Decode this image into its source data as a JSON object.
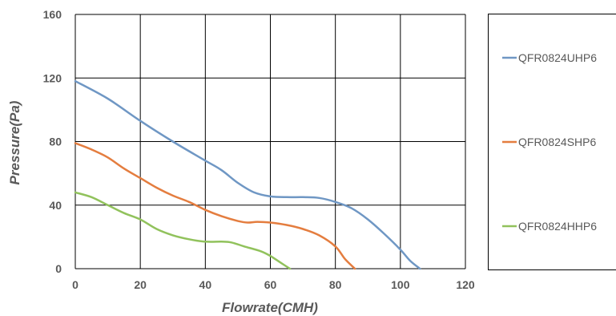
{
  "chart_data": {
    "type": "line",
    "xlabel": "Flowrate(CMH)",
    "ylabel": "Pressure(Pa)",
    "xlim": [
      0,
      120
    ],
    "ylim": [
      0,
      160
    ],
    "xticks": [
      0,
      20,
      40,
      60,
      80,
      100,
      120
    ],
    "yticks": [
      0,
      40,
      80,
      120,
      160
    ],
    "grid": true,
    "legend_position": "right",
    "series": [
      {
        "name": "QFR0824UHP6",
        "color": "#6f97c4",
        "points": [
          [
            0,
            118
          ],
          [
            10,
            107
          ],
          [
            20,
            93
          ],
          [
            30,
            80
          ],
          [
            40,
            68
          ],
          [
            45,
            62
          ],
          [
            50,
            54
          ],
          [
            55,
            48
          ],
          [
            60,
            45.5
          ],
          [
            65,
            45
          ],
          [
            70,
            45
          ],
          [
            75,
            44.5
          ],
          [
            80,
            42
          ],
          [
            85,
            38
          ],
          [
            90,
            31
          ],
          [
            95,
            22
          ],
          [
            100,
            12
          ],
          [
            103,
            5
          ],
          [
            106,
            0
          ]
        ]
      },
      {
        "name": "QFR0824SHP6",
        "color": "#e47d3f",
        "points": [
          [
            0,
            79
          ],
          [
            5,
            75
          ],
          [
            10,
            70
          ],
          [
            15,
            63
          ],
          [
            20,
            57
          ],
          [
            25,
            51
          ],
          [
            30,
            46
          ],
          [
            35,
            42
          ],
          [
            40,
            37
          ],
          [
            45,
            33
          ],
          [
            50,
            30
          ],
          [
            53,
            29
          ],
          [
            56,
            29.5
          ],
          [
            60,
            29
          ],
          [
            65,
            27.5
          ],
          [
            70,
            25
          ],
          [
            75,
            21
          ],
          [
            80,
            14
          ],
          [
            83,
            6
          ],
          [
            86,
            0
          ]
        ]
      },
      {
        "name": "QFR0824HHP6",
        "color": "#91c25c",
        "points": [
          [
            0,
            48
          ],
          [
            5,
            45
          ],
          [
            10,
            40
          ],
          [
            15,
            35
          ],
          [
            20,
            31
          ],
          [
            25,
            25
          ],
          [
            30,
            21
          ],
          [
            35,
            18.5
          ],
          [
            40,
            17
          ],
          [
            45,
            17
          ],
          [
            48,
            16.5
          ],
          [
            52,
            14
          ],
          [
            57,
            11
          ],
          [
            60,
            8
          ],
          [
            63,
            4
          ],
          [
            66,
            0
          ]
        ]
      }
    ]
  }
}
